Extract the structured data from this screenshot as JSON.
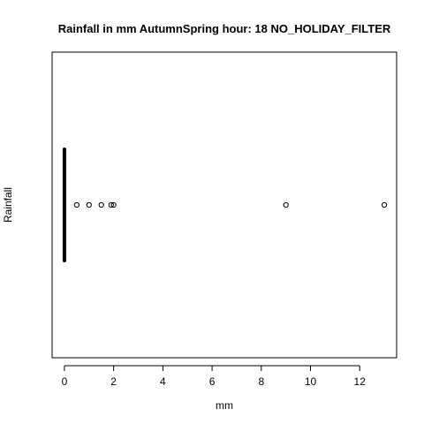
{
  "chart_data": {
    "type": "boxplot",
    "orientation": "horizontal",
    "title": "Rainfall in mm AutumnSpring hour: 18 NO_HOLIDAY_FILTER",
    "xlabel": "mm",
    "ylabel": "Rainfall",
    "xlim": [
      -0.5,
      13.5
    ],
    "xticks": [
      0,
      2,
      4,
      6,
      8,
      10,
      12
    ],
    "box": {
      "min": 0,
      "q1": 0,
      "median": 0,
      "q3": 0,
      "max": 0
    },
    "outliers": [
      0.5,
      1.0,
      1.5,
      1.9,
      2.0,
      9.0,
      13.0
    ],
    "grid": false,
    "colors": {
      "box": "#000000",
      "outlier": "#000000",
      "axis": "#000000"
    }
  }
}
